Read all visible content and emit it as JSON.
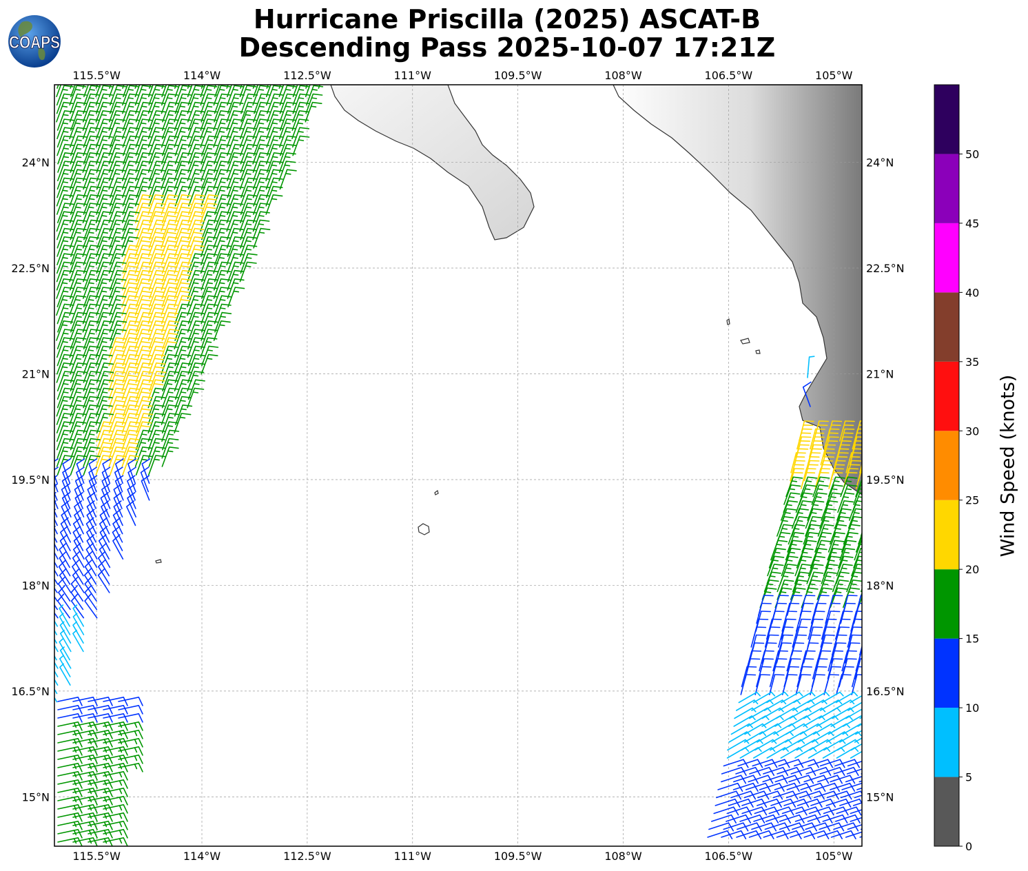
{
  "title": {
    "line1": "Hurricane Priscilla (2025) ASCAT-B",
    "line2": "Descending Pass 2025-10-07 17:21Z"
  },
  "logo": {
    "text": "COAPS",
    "icon": "globe-icon"
  },
  "map": {
    "lon_range": [
      -116.1,
      -104.6
    ],
    "lat_range": [
      14.3,
      25.1
    ],
    "lon_ticks": [
      "115.5°W",
      "114°W",
      "112.5°W",
      "111°W",
      "109.5°W",
      "108°W",
      "106.5°W",
      "105°W"
    ],
    "lon_tick_values": [
      -115.5,
      -114,
      -112.5,
      -111,
      -109.5,
      -108,
      -106.5,
      -105
    ],
    "lat_ticks": [
      "24°N",
      "22.5°N",
      "21°N",
      "19.5°N",
      "18°N",
      "16.5°N",
      "15°N"
    ],
    "lat_tick_values": [
      24,
      22.5,
      21,
      19.5,
      18,
      16.5,
      15
    ],
    "grid": true,
    "barb_color_legend": "wind speed bins, see colorbar"
  },
  "colorbar": {
    "label": "Wind Speed (knots)",
    "tick_labels": [
      "0",
      "5",
      "10",
      "15",
      "20",
      "25",
      "30",
      "35",
      "40",
      "45",
      "50"
    ],
    "bins": [
      {
        "range": [
          0,
          5
        ],
        "color": "#585858"
      },
      {
        "range": [
          5,
          10
        ],
        "color": "#00bfff"
      },
      {
        "range": [
          10,
          15
        ],
        "color": "#0033ff"
      },
      {
        "range": [
          15,
          20
        ],
        "color": "#009600"
      },
      {
        "range": [
          20,
          25
        ],
        "color": "#ffd700"
      },
      {
        "range": [
          25,
          30
        ],
        "color": "#ff8c00"
      },
      {
        "range": [
          30,
          35
        ],
        "color": "#ff0f0f"
      },
      {
        "range": [
          35,
          40
        ],
        "color": "#833e2c"
      },
      {
        "range": [
          40,
          45
        ],
        "color": "#ff00ff"
      },
      {
        "range": [
          45,
          50
        ],
        "color": "#8b00ba"
      },
      {
        "range": [
          50,
          55
        ],
        "color": "#2e005e"
      }
    ]
  },
  "colors": {
    "coast": "#333333",
    "grid": "#9a9a9a",
    "land_light": "#f4f4f4",
    "land_dark": "#6e6e6e"
  }
}
